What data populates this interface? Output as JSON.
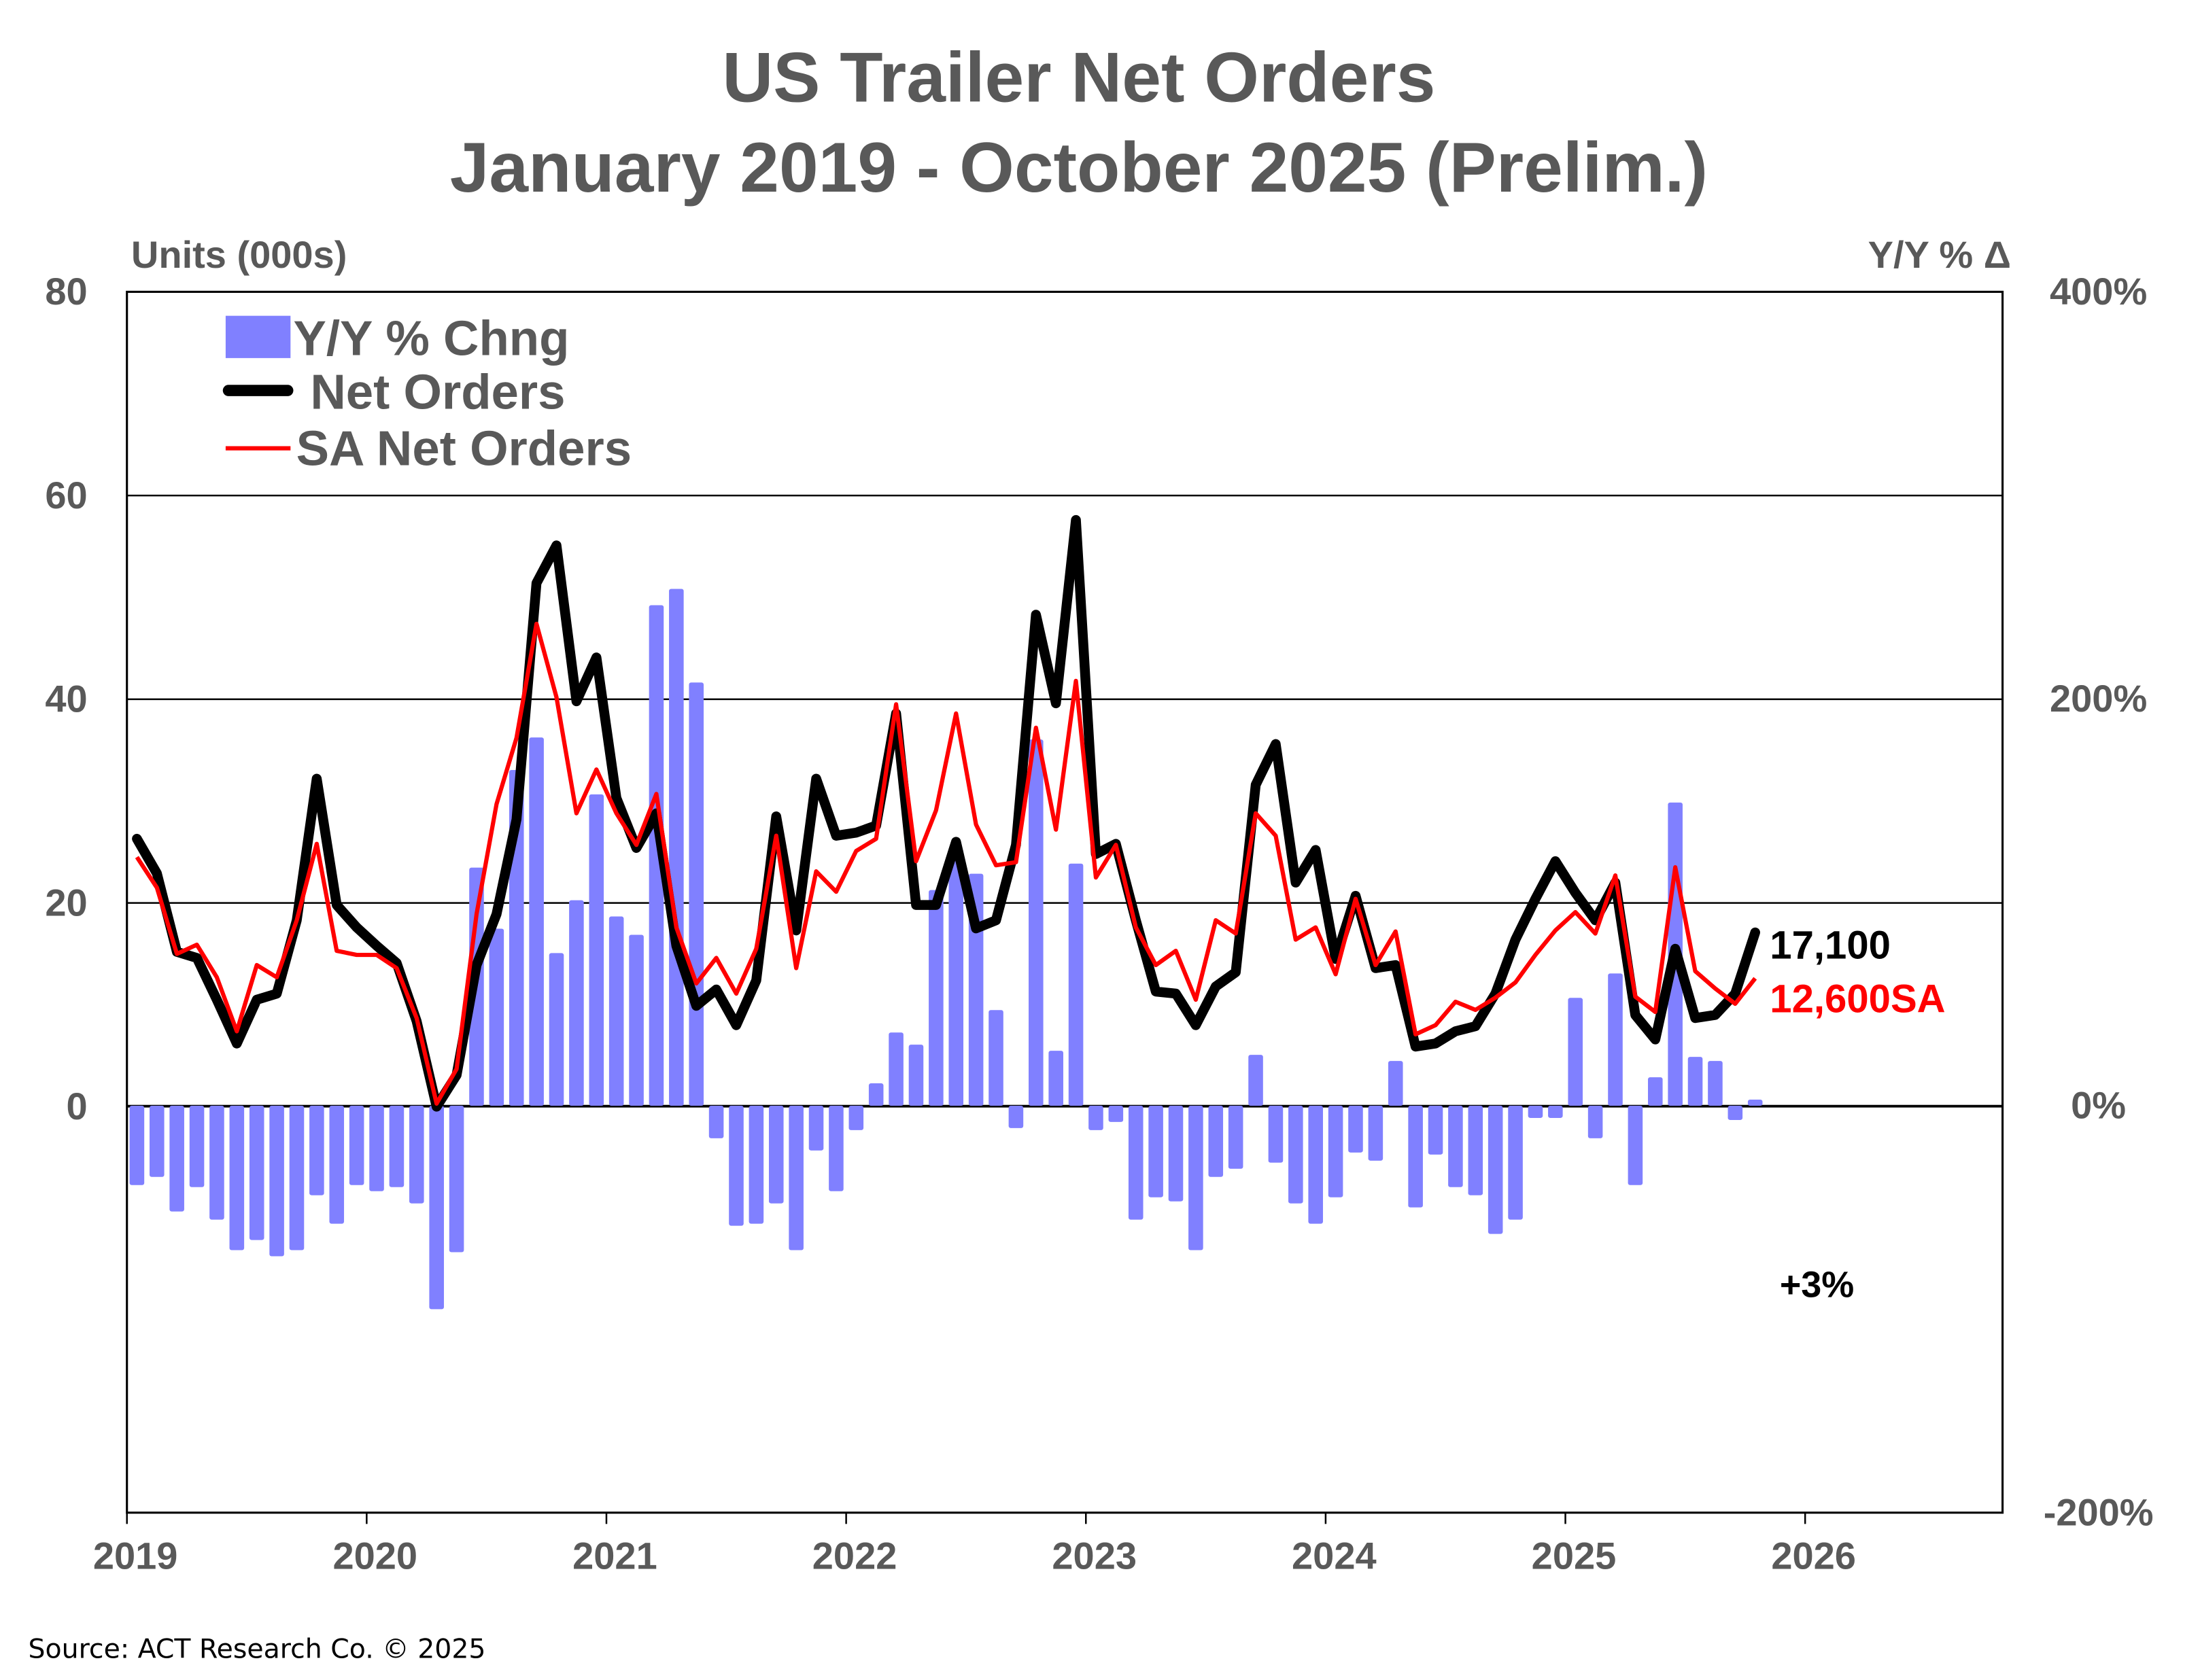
{
  "chart_data": {
    "type": "bar+line",
    "title": "US Trailer Net Orders",
    "subtitle": "January 2019 - October 2025 (Prelim.)",
    "ylabel_left": "Units (000s)",
    "ylabel_right": "Y/Y % Δ",
    "ylim_left": [
      0,
      80
    ],
    "yticks_left": [
      "80",
      "60",
      "40",
      "20",
      "0"
    ],
    "ylim_right": [
      -200,
      400
    ],
    "yticks_right": [
      "400%",
      "200%",
      "0%",
      "-200%"
    ],
    "xticks": [
      "2019",
      "2020",
      "2021",
      "2022",
      "2023",
      "2024",
      "2025",
      "2026"
    ],
    "x_start": "2019-01",
    "x_end": "2025-10",
    "grid": "horizontal",
    "legend_position": "top-left",
    "colors": {
      "bars": "#8080FF",
      "net": "#000000",
      "sa": "#FF0000",
      "text": "#595959"
    },
    "series": [
      {
        "name": "Y/Y % Chng",
        "type": "bar",
        "axis": "right",
        "values": [
          -39,
          -35,
          -52,
          -40,
          -56,
          -71,
          -66,
          -74,
          -71,
          -44,
          -58,
          -39,
          -42,
          -40,
          -48,
          -100,
          -72,
          117,
          87,
          165,
          181,
          75,
          101,
          153,
          93,
          84,
          246,
          254,
          208,
          -16,
          -59,
          -58,
          -48,
          -71,
          -22,
          -42,
          -12,
          11,
          36,
          30,
          106,
          126,
          114,
          47,
          -11,
          180,
          27,
          119,
          -12,
          -8,
          -56,
          -45,
          -47,
          -71,
          -35,
          -31,
          25,
          -28,
          -48,
          -58,
          -45,
          -23,
          -27,
          22,
          -50,
          -24,
          -40,
          -44,
          -63,
          -56,
          -6,
          -6,
          53,
          -16,
          65,
          -39,
          14,
          149,
          24,
          22,
          -7,
          3
        ]
      },
      {
        "name": "Net Orders",
        "type": "line",
        "axis": "left",
        "values": [
          26.3,
          22.9,
          15.2,
          14.6,
          10.5,
          6.2,
          10.5,
          11.1,
          18.3,
          32.2,
          19.8,
          17.6,
          15.8,
          14.1,
          8.4,
          0,
          3.1,
          13.9,
          18.9,
          28.2,
          51.4,
          55.1,
          39.8,
          44.1,
          30.3,
          25.4,
          28.8,
          15.8,
          9.9,
          11.5,
          8.0,
          12.4,
          28.5,
          17.3,
          32.2,
          26.6,
          26.9,
          27.6,
          38.6,
          19.8,
          19.8,
          26.0,
          17.5,
          18.3,
          25.7,
          48.3,
          39.6,
          57.6,
          24.8,
          25.8,
          18.3,
          11.3,
          11.1,
          8.0,
          11.8,
          13.2,
          31.6,
          35.6,
          22.0,
          25.2,
          14.5,
          20.7,
          13.6,
          13.9,
          5.9,
          6.2,
          7.4,
          7.9,
          11.1,
          16.4,
          20.4,
          24.1,
          21.0,
          18.3,
          22.0,
          9.0,
          6.6,
          15.5,
          8.7,
          9.0,
          11.1,
          17.1
        ]
      },
      {
        "name": "SA Net Orders",
        "type": "line",
        "axis": "left",
        "values": [
          24.5,
          21.5,
          15.0,
          15.9,
          12.7,
          7.4,
          13.9,
          12.7,
          18.3,
          25.8,
          15.3,
          14.9,
          14.9,
          13.6,
          8.7,
          0.3,
          3.7,
          18.9,
          29.7,
          36.2,
          47.4,
          40.2,
          28.8,
          33.1,
          28.8,
          25.7,
          30.7,
          17.6,
          12.1,
          14.6,
          11.1,
          15.5,
          26.6,
          13.6,
          23.1,
          21.1,
          25.1,
          26.3,
          39.5,
          24.1,
          29.1,
          38.6,
          27.7,
          23.7,
          24.0,
          37.2,
          27.2,
          41.8,
          22.5,
          25.7,
          17.6,
          13.9,
          15.3,
          10.5,
          18.3,
          17.0,
          28.8,
          26.6,
          16.4,
          17.6,
          13.0,
          20.4,
          13.9,
          17.2,
          7.1,
          8.0,
          10.3,
          9.5,
          10.7,
          12.2,
          14.9,
          17.3,
          19.1,
          17.0,
          22.7,
          10.8,
          9.3,
          23.5,
          13.3,
          11.6,
          10.1,
          12.6
        ]
      }
    ],
    "annotations": {
      "net_last": "17,100",
      "sa_last": "12,600SA",
      "yoy_last": "+3%"
    }
  },
  "source": "Source: ACT Research Co. © 2025"
}
